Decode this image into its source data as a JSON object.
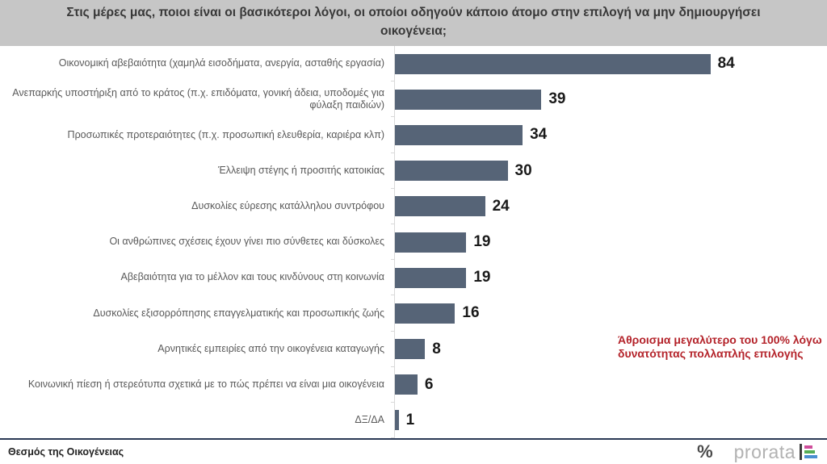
{
  "title": "Στις μέρες μας, ποιοι είναι οι βασικότεροι λόγοι, οι οποίοι οδηγούν κάποιο άτομο στην επιλογή να μην δημιουργήσει οικογένεια;",
  "chart_data": {
    "type": "bar",
    "orientation": "horizontal",
    "title": "Στις μέρες μας, ποιοι είναι οι βασικότεροι λόγοι, οι οποίοι οδηγούν κάποιο άτομο στην επιλογή να μην δημιουργήσει οικογένεια;",
    "categories": [
      "Οικονομική αβεβαιότητα (χαμηλά εισοδήματα, ανεργία, ασταθής εργασία)",
      "Ανεπαρκής υποστήριξη από το κράτος (π.χ. επιδόματα, γονική άδεια, υποδομές για φύλαξη παιδιών)",
      "Προσωπικές προτεραιότητες (π.χ. προσωπική ελευθερία, καριέρα κλπ)",
      "Έλλειψη στέγης ή προσιτής κατοικίας",
      "Δυσκολίες εύρεσης κατάλληλου συντρόφου",
      "Οι ανθρώπινες σχέσεις έχουν γίνει πιο σύνθετες και δύσκολες",
      "Αβεβαιότητα για το μέλλον και τους κινδύνους στη κοινωνία",
      "Δυσκολίες εξισορρόπησης επαγγελματικής και προσωπικής ζωής",
      "Αρνητικές εμπειρίες από την οικογένεια καταγωγής",
      "Κοινωνική πίεση ή στερεότυπα σχετικά με το πώς πρέπει να είναι μια οικογένεια",
      "ΔΞ/ΔΑ"
    ],
    "values": [
      84,
      39,
      34,
      30,
      24,
      19,
      19,
      16,
      8,
      6,
      1
    ],
    "xlim": [
      0,
      100
    ],
    "grid": false,
    "legend": "none",
    "bar_color": "#566477",
    "value_labels_shown": true
  },
  "annotation": {
    "text": "Άθροισμα μεγαλύτερο του 100% λόγω δυνατότητας πολλαπλής επιλογής",
    "color": "#b4232a"
  },
  "footer": {
    "left_text": "Θεσμός της Οικογένειας",
    "percent_mark": "%",
    "brand_text": "prorata",
    "logo_colors": {
      "pink": "#cf4e9b",
      "green": "#55ae57",
      "blue": "#4b8fd1",
      "bar": "#3d3d3d"
    }
  }
}
